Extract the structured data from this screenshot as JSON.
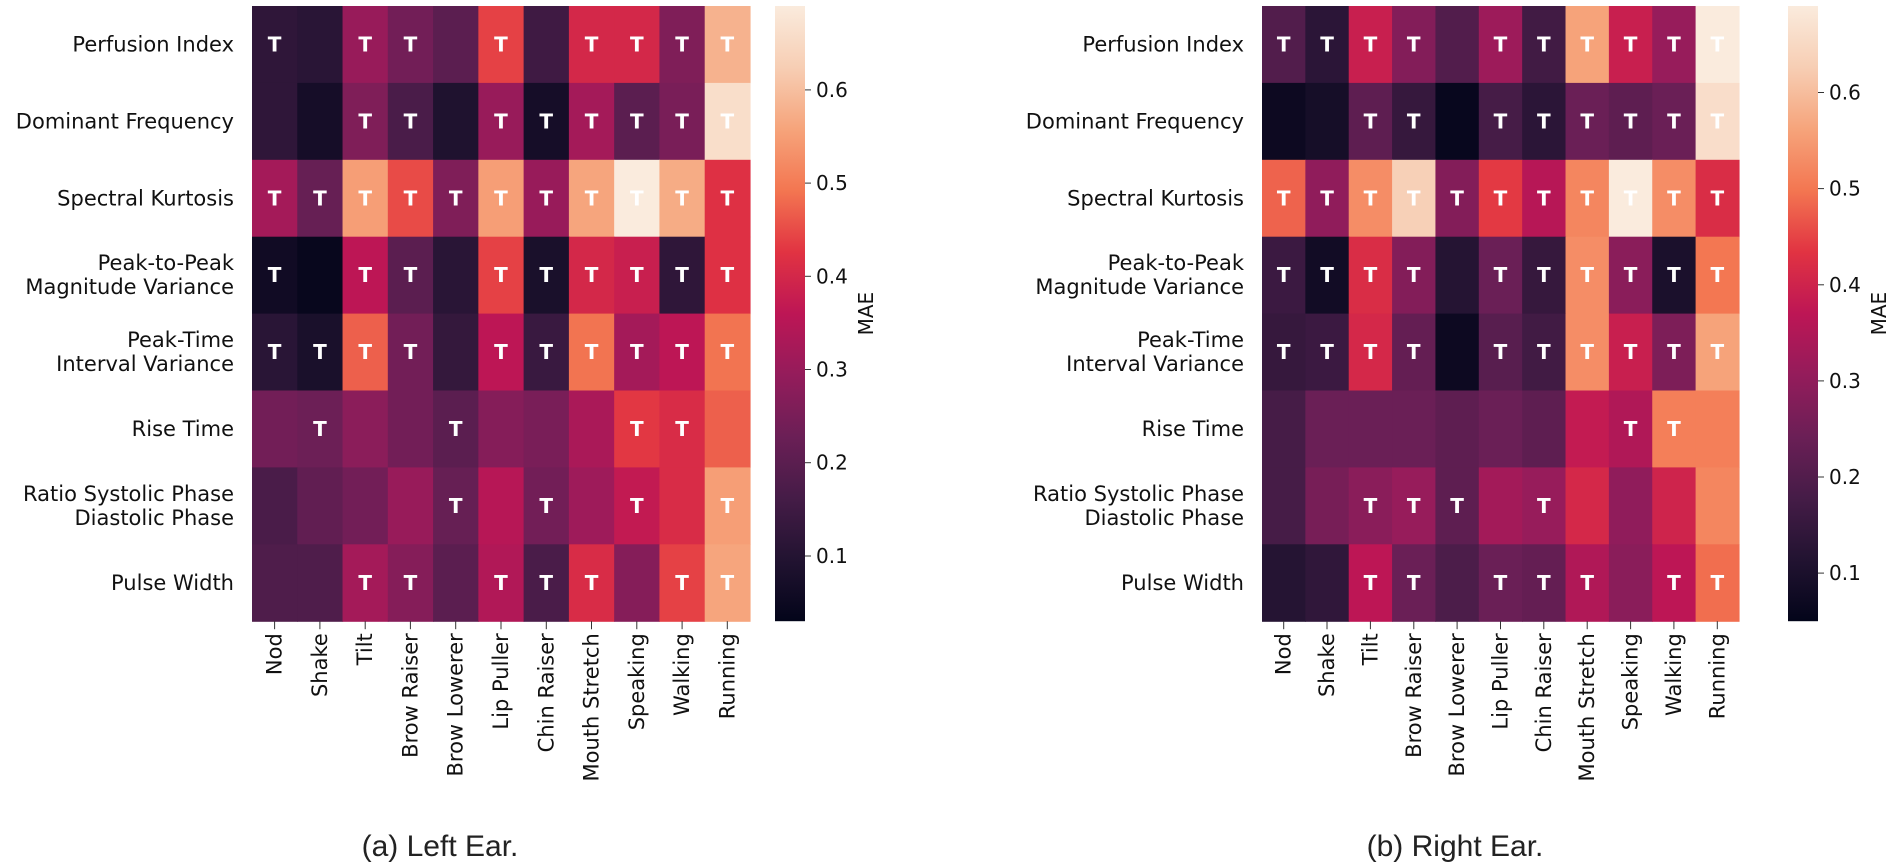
{
  "colormap": {
    "name": "rocket",
    "stops": [
      "#03051a",
      "#221331",
      "#451c47",
      "#6b1f56",
      "#941c5b",
      "#bd1655",
      "#e13342",
      "#f37651",
      "#f6a47b",
      "#f7ceb4",
      "#faebdd"
    ]
  },
  "chart_data": [
    {
      "type": "heatmap",
      "title": "(a) Left Ear.",
      "colorbar_label": "MAE",
      "colorbar_ticks": [
        "0.1",
        "0.2",
        "0.3",
        "0.4",
        "0.5",
        "0.6"
      ],
      "vmin": 0.03,
      "vmax": 0.69,
      "rows": [
        "Perfusion Index",
        "Dominant Frequency",
        "Spectral Kurtosis",
        "Peak-to-Peak\nMagnitude Variance",
        "Peak-Time\nInterval Variance",
        "Rise Time",
        "Ratio Systolic Phase\nDiastolic Phase",
        "Pulse Width"
      ],
      "columns": [
        "Nod",
        "Shake",
        "Tilt",
        "Brow Raiser",
        "Brow Lowerer",
        "Lip Puller",
        "Chin Raiser",
        "Mouth Stretch",
        "Speaking",
        "Walking",
        "Running"
      ],
      "cell_marker": "T",
      "values": [
        [
          0.12,
          0.11,
          0.3,
          0.24,
          0.2,
          0.44,
          0.15,
          0.4,
          0.4,
          0.26,
          0.58
        ],
        [
          0.12,
          0.07,
          0.26,
          0.17,
          0.09,
          0.3,
          0.07,
          0.32,
          0.2,
          0.25,
          0.66
        ],
        [
          0.32,
          0.22,
          0.55,
          0.45,
          0.26,
          0.55,
          0.3,
          0.56,
          0.69,
          0.57,
          0.42
        ],
        [
          0.06,
          0.04,
          0.36,
          0.2,
          0.11,
          0.44,
          0.08,
          0.4,
          0.38,
          0.12,
          0.42
        ],
        [
          0.11,
          0.08,
          0.47,
          0.24,
          0.13,
          0.36,
          0.14,
          0.49,
          0.32,
          0.36,
          0.49
        ],
        [
          0.24,
          0.23,
          0.28,
          0.24,
          0.2,
          0.27,
          0.25,
          0.33,
          0.43,
          0.41,
          0.47
        ],
        [
          0.17,
          0.21,
          0.24,
          0.3,
          0.22,
          0.35,
          0.24,
          0.31,
          0.37,
          0.41,
          0.55
        ],
        [
          0.18,
          0.18,
          0.32,
          0.27,
          0.2,
          0.34,
          0.17,
          0.41,
          0.27,
          0.44,
          0.56
        ]
      ],
      "marked": [
        [
          1,
          0,
          1,
          1,
          0,
          1,
          0,
          1,
          1,
          1,
          1
        ],
        [
          0,
          0,
          1,
          1,
          0,
          1,
          1,
          1,
          1,
          1,
          1
        ],
        [
          1,
          1,
          1,
          1,
          1,
          1,
          1,
          1,
          1,
          1,
          1
        ],
        [
          1,
          0,
          1,
          1,
          0,
          1,
          1,
          1,
          1,
          1,
          1
        ],
        [
          1,
          1,
          1,
          1,
          0,
          1,
          1,
          1,
          1,
          1,
          1
        ],
        [
          0,
          1,
          0,
          0,
          1,
          0,
          0,
          0,
          1,
          1,
          0
        ],
        [
          0,
          0,
          0,
          0,
          1,
          0,
          1,
          0,
          1,
          0,
          1
        ],
        [
          0,
          0,
          1,
          1,
          0,
          1,
          1,
          1,
          0,
          1,
          1
        ]
      ]
    },
    {
      "type": "heatmap",
      "title": "(b) Right Ear.",
      "colorbar_label": "MAE",
      "colorbar_ticks": [
        "0.1",
        "0.2",
        "0.3",
        "0.4",
        "0.5",
        "0.6"
      ],
      "vmin": 0.05,
      "vmax": 0.69,
      "rows": [
        "Perfusion Index",
        "Dominant Frequency",
        "Spectral Kurtosis",
        "Peak-to-Peak\nMagnitude Variance",
        "Peak-Time\nInterval Variance",
        "Rise Time",
        "Ratio Systolic Phase\nDiastolic Phase",
        "Pulse Width"
      ],
      "columns": [
        "Nod",
        "Shake",
        "Tilt",
        "Brow Raiser",
        "Brow Lowerer",
        "Lip Puller",
        "Chin Raiser",
        "Mouth Stretch",
        "Speaking",
        "Walking",
        "Running"
      ],
      "cell_marker": "T",
      "values": [
        [
          0.2,
          0.13,
          0.39,
          0.28,
          0.2,
          0.32,
          0.17,
          0.56,
          0.39,
          0.31,
          0.69
        ],
        [
          0.07,
          0.09,
          0.22,
          0.15,
          0.06,
          0.18,
          0.13,
          0.24,
          0.22,
          0.24,
          0.66
        ],
        [
          0.48,
          0.3,
          0.53,
          0.63,
          0.28,
          0.44,
          0.36,
          0.52,
          0.69,
          0.53,
          0.42
        ],
        [
          0.16,
          0.08,
          0.42,
          0.28,
          0.12,
          0.24,
          0.15,
          0.53,
          0.29,
          0.1,
          0.5
        ],
        [
          0.15,
          0.16,
          0.41,
          0.23,
          0.07,
          0.21,
          0.17,
          0.53,
          0.39,
          0.27,
          0.56
        ],
        [
          0.18,
          0.24,
          0.24,
          0.24,
          0.22,
          0.24,
          0.22,
          0.38,
          0.35,
          0.51,
          0.51
        ],
        [
          0.18,
          0.26,
          0.29,
          0.31,
          0.22,
          0.33,
          0.31,
          0.41,
          0.3,
          0.4,
          0.52
        ],
        [
          0.12,
          0.14,
          0.37,
          0.24,
          0.19,
          0.24,
          0.23,
          0.35,
          0.29,
          0.37,
          0.49
        ]
      ],
      "marked": [
        [
          1,
          1,
          1,
          1,
          0,
          1,
          1,
          1,
          1,
          1,
          1
        ],
        [
          0,
          0,
          1,
          1,
          0,
          1,
          1,
          1,
          1,
          1,
          1
        ],
        [
          1,
          1,
          1,
          1,
          1,
          1,
          1,
          1,
          1,
          1,
          1
        ],
        [
          1,
          1,
          1,
          1,
          0,
          1,
          1,
          1,
          1,
          1,
          1
        ],
        [
          1,
          1,
          1,
          1,
          0,
          1,
          1,
          1,
          1,
          1,
          1
        ],
        [
          0,
          0,
          0,
          0,
          0,
          0,
          0,
          0,
          1,
          1,
          0
        ],
        [
          0,
          0,
          1,
          1,
          1,
          0,
          1,
          0,
          0,
          0,
          0
        ],
        [
          0,
          0,
          1,
          1,
          0,
          1,
          1,
          1,
          0,
          1,
          1
        ]
      ]
    }
  ]
}
